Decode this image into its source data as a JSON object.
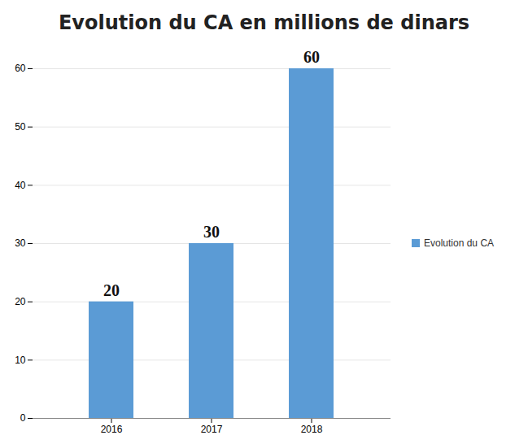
{
  "chart_data": {
    "type": "bar",
    "title": "Evolution du CA en millions de dinars",
    "categories": [
      "2016",
      "2017",
      "2018"
    ],
    "series": [
      {
        "name": "Evolution du CA",
        "color": "#5b9bd5",
        "values": [
          20,
          30,
          60
        ]
      }
    ],
    "ylim": [
      0,
      60
    ],
    "yticks": [
      0,
      10,
      20,
      30,
      40,
      50,
      60
    ],
    "grid": true,
    "legend": "right",
    "data_labels": true
  }
}
